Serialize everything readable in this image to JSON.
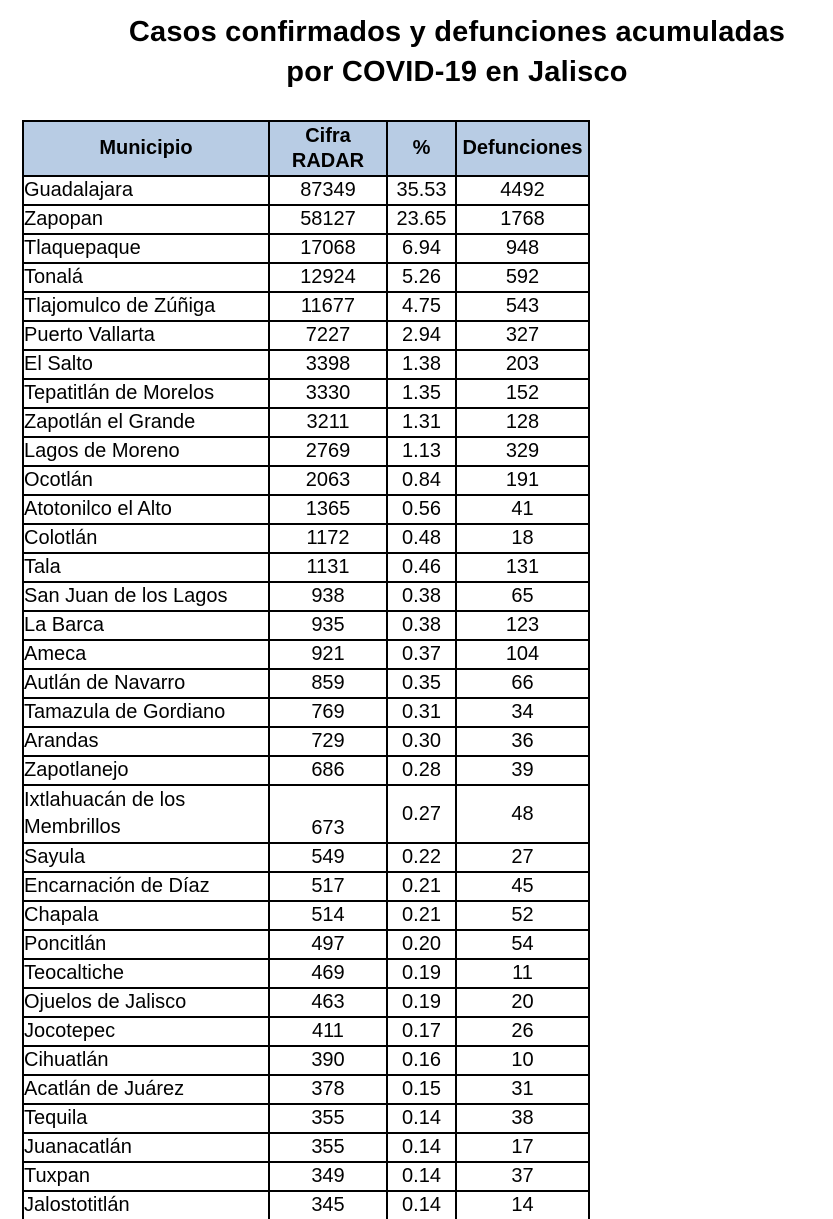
{
  "title": {
    "line1": "Casos confirmados y defunciones acumuladas",
    "line2": "por COVID-19 en Jalisco"
  },
  "colors": {
    "header_bg": "#b8cce4",
    "border": "#000000",
    "text": "#000000",
    "background": "#ffffff"
  },
  "chart_data": {
    "type": "table",
    "title": "Casos confirmados y defunciones acumuladas por COVID-19 en Jalisco",
    "columns": [
      "Municipio",
      "Cifra\nRADAR",
      "%",
      "Defunciones"
    ],
    "rows": [
      {
        "municipio": "Guadalajara",
        "cifra_radar": "87349",
        "pct": "35.53",
        "defunciones": "4492"
      },
      {
        "municipio": "Zapopan",
        "cifra_radar": "58127",
        "pct": "23.65",
        "defunciones": "1768"
      },
      {
        "municipio": "Tlaquepaque",
        "cifra_radar": "17068",
        "pct": "6.94",
        "defunciones": "948"
      },
      {
        "municipio": "Tonalá",
        "cifra_radar": "12924",
        "pct": "5.26",
        "defunciones": "592"
      },
      {
        "municipio": "Tlajomulco de Zúñiga",
        "cifra_radar": "11677",
        "pct": "4.75",
        "defunciones": "543"
      },
      {
        "municipio": "Puerto Vallarta",
        "cifra_radar": "7227",
        "pct": "2.94",
        "defunciones": "327"
      },
      {
        "municipio": "El Salto",
        "cifra_radar": "3398",
        "pct": "1.38",
        "defunciones": "203"
      },
      {
        "municipio": "Tepatitlán de Morelos",
        "cifra_radar": "3330",
        "pct": "1.35",
        "defunciones": "152"
      },
      {
        "municipio": "Zapotlán el Grande",
        "cifra_radar": "3211",
        "pct": "1.31",
        "defunciones": "128"
      },
      {
        "municipio": "Lagos de Moreno",
        "cifra_radar": "2769",
        "pct": "1.13",
        "defunciones": "329"
      },
      {
        "municipio": "Ocotlán",
        "cifra_radar": "2063",
        "pct": "0.84",
        "defunciones": "191"
      },
      {
        "municipio": "Atotonilco el Alto",
        "cifra_radar": "1365",
        "pct": "0.56",
        "defunciones": "41"
      },
      {
        "municipio": "Colotlán",
        "cifra_radar": "1172",
        "pct": "0.48",
        "defunciones": "18"
      },
      {
        "municipio": "Tala",
        "cifra_radar": "1131",
        "pct": "0.46",
        "defunciones": "131"
      },
      {
        "municipio": "San Juan de los Lagos",
        "cifra_radar": "938",
        "pct": "0.38",
        "defunciones": "65"
      },
      {
        "municipio": "La Barca",
        "cifra_radar": "935",
        "pct": "0.38",
        "defunciones": "123"
      },
      {
        "municipio": "Ameca",
        "cifra_radar": "921",
        "pct": "0.37",
        "defunciones": "104"
      },
      {
        "municipio": "Autlán de Navarro",
        "cifra_radar": "859",
        "pct": "0.35",
        "defunciones": "66"
      },
      {
        "municipio": "Tamazula de Gordiano",
        "cifra_radar": "769",
        "pct": "0.31",
        "defunciones": "34"
      },
      {
        "municipio": "Arandas",
        "cifra_radar": "729",
        "pct": "0.30",
        "defunciones": "36"
      },
      {
        "municipio": "Zapotlanejo",
        "cifra_radar": "686",
        "pct": "0.28",
        "defunciones": "39"
      },
      {
        "municipio": "Ixtlahuacán de los Membrillos",
        "cifra_radar": "673",
        "pct": "0.27",
        "defunciones": "48",
        "tall": true
      },
      {
        "municipio": "Sayula",
        "cifra_radar": "549",
        "pct": "0.22",
        "defunciones": "27"
      },
      {
        "municipio": "Encarnación de Díaz",
        "cifra_radar": "517",
        "pct": "0.21",
        "defunciones": "45"
      },
      {
        "municipio": "Chapala",
        "cifra_radar": "514",
        "pct": "0.21",
        "defunciones": "52"
      },
      {
        "municipio": "Poncitlán",
        "cifra_radar": "497",
        "pct": "0.20",
        "defunciones": "54"
      },
      {
        "municipio": "Teocaltiche",
        "cifra_radar": "469",
        "pct": "0.19",
        "defunciones": "11"
      },
      {
        "municipio": "Ojuelos de Jalisco",
        "cifra_radar": "463",
        "pct": "0.19",
        "defunciones": "20"
      },
      {
        "municipio": "Jocotepec",
        "cifra_radar": "411",
        "pct": "0.17",
        "defunciones": "26"
      },
      {
        "municipio": "Cihuatlán",
        "cifra_radar": "390",
        "pct": "0.16",
        "defunciones": "10"
      },
      {
        "municipio": "Acatlán de Juárez",
        "cifra_radar": "378",
        "pct": "0.15",
        "defunciones": "31"
      },
      {
        "municipio": "Tequila",
        "cifra_radar": "355",
        "pct": "0.14",
        "defunciones": "38"
      },
      {
        "municipio": "Juanacatlán",
        "cifra_radar": "355",
        "pct": "0.14",
        "defunciones": "17"
      },
      {
        "municipio": "Tuxpan",
        "cifra_radar": "349",
        "pct": "0.14",
        "defunciones": "37"
      },
      {
        "municipio": "Jalostotitlán",
        "cifra_radar": "345",
        "pct": "0.14",
        "defunciones": "14"
      }
    ]
  }
}
